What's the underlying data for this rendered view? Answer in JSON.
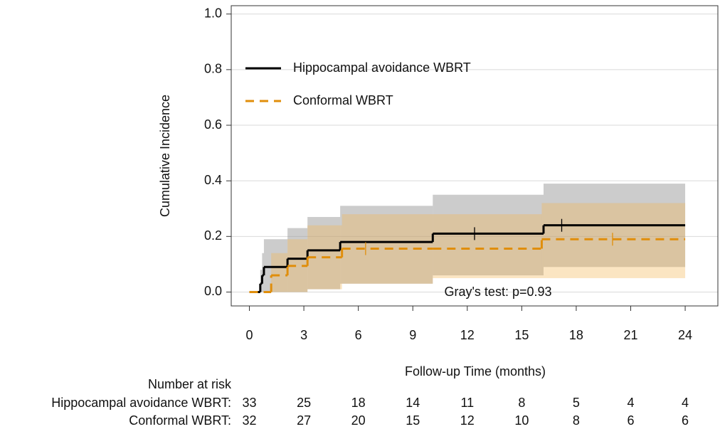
{
  "chart_data": {
    "type": "step",
    "y_label": "Cumulative Incidence",
    "x_label": "Follow-up Time (months)",
    "annotation": "Gray's test: p=0.93",
    "xlim": [
      -1,
      25.8
    ],
    "ylim": [
      -0.05,
      1.03
    ],
    "xticks": [
      0,
      3,
      6,
      9,
      12,
      15,
      18,
      21,
      24
    ],
    "yticks": [
      {
        "value": 0,
        "label": "0.0"
      },
      {
        "value": 0.2,
        "label": "0.2"
      },
      {
        "value": 0.4,
        "label": "0.4"
      },
      {
        "value": 0.6,
        "label": "0.6"
      },
      {
        "value": 0.8,
        "label": "0.8"
      },
      {
        "value": 1,
        "label": "1.0"
      }
    ],
    "grid": true,
    "legend": "upper left",
    "series": [
      {
        "name": "Hippocampal avoidance WBRT",
        "color": "#000000",
        "dashed": false,
        "band_color": "#999999",
        "x": [
          0,
          0.6,
          0.7,
          0.8,
          2.1,
          3.2,
          5.0,
          10.1,
          16.2,
          24
        ],
        "values": [
          0,
          0.03,
          0.06,
          0.09,
          0.12,
          0.15,
          0.18,
          0.21,
          0.24,
          0.24
        ],
        "lower": [
          0,
          0,
          0,
          0,
          0,
          0.01,
          0.03,
          0.06,
          0.09,
          0.09
        ],
        "upper": [
          0,
          0.08,
          0.14,
          0.19,
          0.23,
          0.27,
          0.31,
          0.35,
          0.39,
          0.39
        ],
        "censor_x": [
          12.4,
          17.2
        ]
      },
      {
        "name": "Conformal WBRT",
        "color": "#e08e0b",
        "dashed": true,
        "band_color": "#f3b450",
        "x": [
          0,
          1.2,
          2.1,
          3.2,
          5.1,
          10.1,
          16.1,
          24
        ],
        "values": [
          0,
          0.06,
          0.094,
          0.125,
          0.156,
          0.156,
          0.19,
          0.19
        ],
        "lower": [
          0,
          0,
          0,
          0.01,
          0.03,
          0.05,
          0.05,
          0.05
        ],
        "upper": [
          0,
          0.14,
          0.19,
          0.24,
          0.28,
          0.28,
          0.32,
          0.32
        ],
        "censor_x": [
          6.4,
          20.0
        ]
      }
    ],
    "risk_table": {
      "title": "Number at risk",
      "rows": [
        {
          "label": "Hippocampal avoidance WBRT:",
          "values": [
            33,
            25,
            18,
            14,
            11,
            8,
            5,
            4,
            4
          ]
        },
        {
          "label": "Conformal WBRT:",
          "values": [
            32,
            27,
            20,
            15,
            12,
            10,
            8,
            6,
            6
          ]
        }
      ]
    }
  }
}
